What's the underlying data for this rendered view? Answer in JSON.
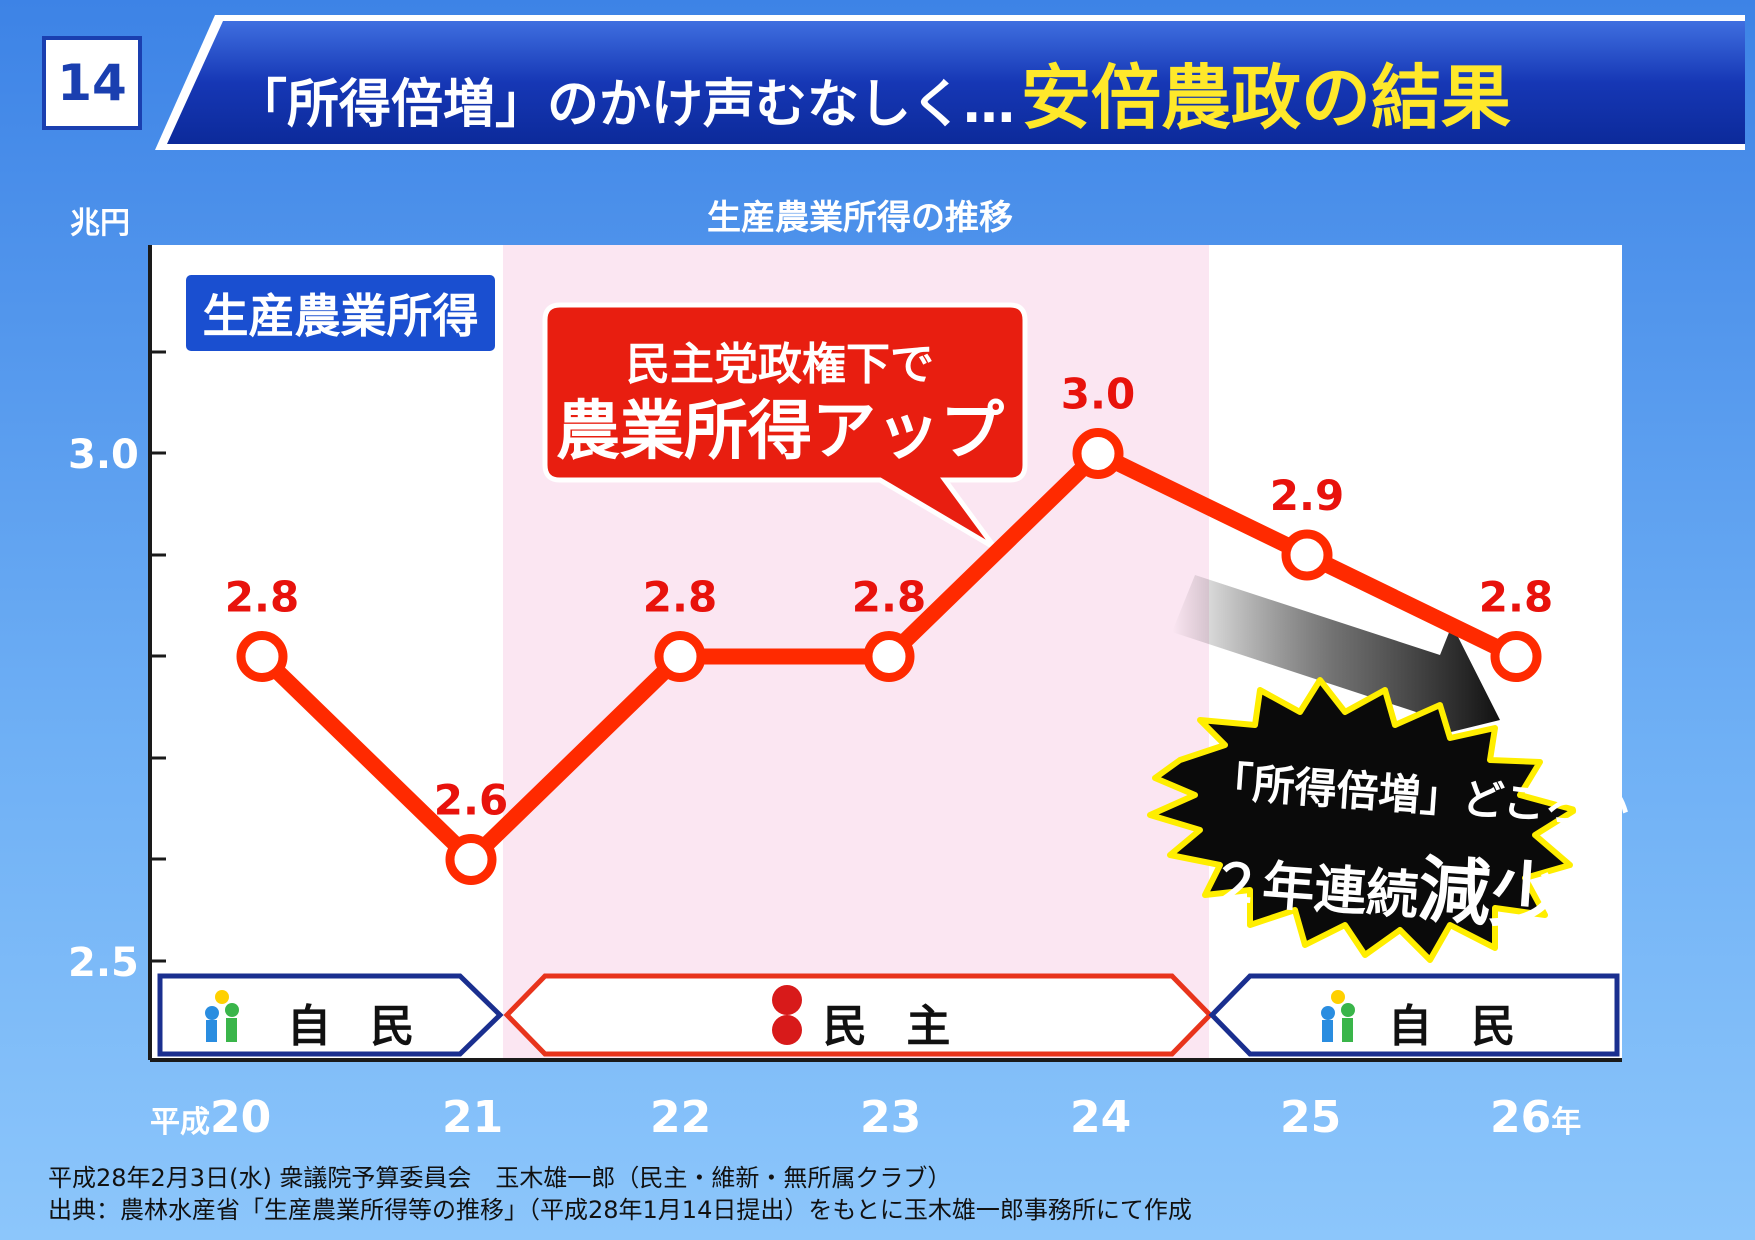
{
  "header": {
    "slide_number": "14",
    "title_part1": "「所得倍増」のかけ声むなしく…",
    "title_part2": "安倍農政の結果"
  },
  "chart_data": {
    "type": "line",
    "title": "生産農業所得の推移",
    "unit_label": "兆円",
    "series_label": "生産農業所得",
    "categories": [
      "20",
      "21",
      "22",
      "23",
      "24",
      "25",
      "26"
    ],
    "x_prefix": "平成",
    "x_suffix": "年",
    "values": [
      2.8,
      2.6,
      2.8,
      2.8,
      3.0,
      2.9,
      2.8
    ],
    "data_labels": [
      "2.8",
      "2.6",
      "2.8",
      "2.8",
      "3.0",
      "2.9",
      "2.8"
    ],
    "y_tick_labels": [
      "3.0",
      "2.5"
    ],
    "ylim": [
      2.5,
      3.2
    ],
    "grid": false,
    "colors": {
      "line": "#ff2a00",
      "label": "#e8120c",
      "dpj_band": "#fbe6f2"
    }
  },
  "periods": [
    {
      "label": "自 民",
      "party": "ldp"
    },
    {
      "label": "民 主",
      "party": "dpj"
    },
    {
      "label": "自 民",
      "party": "ldp"
    }
  ],
  "callout": {
    "line1": "民主党政権下で",
    "line2": "農業所得アップ"
  },
  "burst": {
    "line1": "「所得倍増」どころか",
    "line2_prefix": "２年連続",
    "line2_big": "減少!!"
  },
  "footer": {
    "line1": "平成28年2月3日(水) 衆議院予算委員会　玉木雄一郎（民主・維新・無所属クラブ）",
    "line2": "出典：農林水産省「生産農業所得等の推移」（平成28年1月14日提出）をもとに玉木雄一郎事務所にて作成"
  }
}
